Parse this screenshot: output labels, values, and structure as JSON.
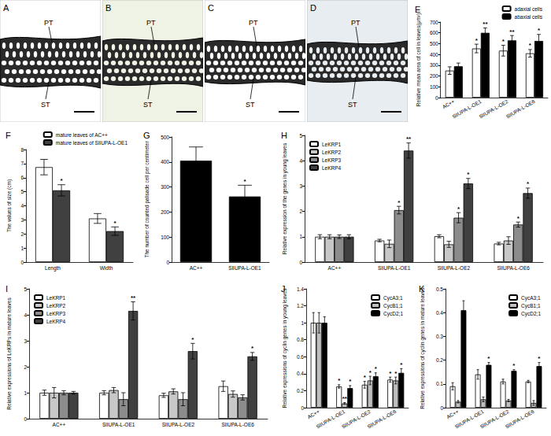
{
  "images": [
    {
      "title": "A",
      "labels": [
        "PT",
        "ST"
      ]
    },
    {
      "title": "B",
      "labels": [
        "PT",
        "ST"
      ]
    },
    {
      "title": "C",
      "labels": [
        "PT",
        "ST"
      ]
    },
    {
      "title": "D",
      "labels": [
        "PT",
        "ST"
      ]
    }
  ],
  "chart_data": [
    {
      "type": "bar",
      "title": "E",
      "ylabel": "Relative mean area of cell in leaves(μm²)",
      "categories": [
        "AC++",
        "SlIUPA-L-OE1",
        "SlIUPA-L-OE2",
        "SlIUPA-L-OE6"
      ],
      "series": [
        {
          "name": "adaxial cells",
          "color": "#ffffff",
          "values": [
            250,
            455,
            435,
            410
          ],
          "errors": [
            35,
            40,
            50,
            35
          ],
          "annotations": [
            null,
            "*",
            "*",
            "*"
          ]
        },
        {
          "name": "abaxial cells",
          "color": "#000000",
          "values": [
            290,
            600,
            530,
            525
          ],
          "errors": [
            30,
            45,
            45,
            60
          ],
          "annotations": [
            null,
            "**",
            "**",
            "*"
          ]
        }
      ],
      "ylim": [
        0,
        700
      ],
      "yticks": [
        0,
        100,
        200,
        300,
        400,
        500,
        600,
        700
      ],
      "grid": false,
      "legend": "upper right"
    },
    {
      "type": "bar",
      "title": "F",
      "ylabel": "The values of size (cm)",
      "categories": [
        "Length",
        "Width"
      ],
      "series": [
        {
          "name": "mature leaves of AC++",
          "color": "#ffffff",
          "values": [
            6.75,
            3.1
          ],
          "errors": [
            0.55,
            0.35
          ]
        },
        {
          "name": "mature leaves of SlIUPA-L-OE1",
          "color": "#404040",
          "values": [
            5.1,
            2.2
          ],
          "errors": [
            0.4,
            0.3
          ],
          "annotations": [
            "*",
            "*"
          ]
        }
      ],
      "ylim": [
        0,
        8
      ],
      "yticks": [
        0,
        1,
        2,
        3,
        4,
        5,
        6,
        7,
        8
      ],
      "grid": false,
      "legend": "upper right"
    },
    {
      "type": "bar",
      "title": "G",
      "ylabel": "The number of counted palisade cell per centimeter",
      "categories": [
        "AC++",
        "SlIUPA-L-OE1"
      ],
      "series": [
        {
          "color": "#000000",
          "values": [
            405,
            262
          ],
          "errors": [
            55,
            45
          ],
          "annotations": [
            null,
            "*"
          ]
        }
      ],
      "ylim": [
        0,
        500
      ],
      "yticks": [
        0,
        100,
        200,
        300,
        400,
        500
      ],
      "grid": false
    },
    {
      "type": "bar",
      "title": "H",
      "ylabel": "Relative expression of the genes in young leaves",
      "categories": [
        "AC++",
        "SlIUPA-L-OE1",
        "SlIUPA-L-OE2",
        "SlIUPA-L-OE6"
      ],
      "series": [
        {
          "name": "LeKRP1",
          "color": "#ffffff",
          "values": [
            1.0,
            0.85,
            1.02,
            0.73
          ],
          "errors": [
            0.08,
            0.05,
            0.06,
            0.05
          ]
        },
        {
          "name": "LeKRP2",
          "color": "#c8c8c8",
          "values": [
            1.0,
            0.72,
            0.7,
            0.85
          ],
          "errors": [
            0.08,
            0.15,
            0.12,
            0.15
          ]
        },
        {
          "name": "LeKRP3",
          "color": "#8c8c8c",
          "values": [
            1.0,
            2.05,
            1.75,
            1.48
          ],
          "errors": [
            0.07,
            0.15,
            0.2,
            0.1
          ],
          "annotations": [
            null,
            "*",
            "*",
            "*"
          ]
        },
        {
          "name": "LeKRP4",
          "color": "#404040",
          "values": [
            1.0,
            4.4,
            3.1,
            2.72
          ],
          "errors": [
            0.08,
            0.3,
            0.2,
            0.2
          ],
          "annotations": [
            null,
            "**",
            "*",
            "*"
          ]
        }
      ],
      "ylim": [
        0,
        5
      ],
      "yticks": [
        0,
        1,
        2,
        3,
        4,
        5
      ],
      "grid": false,
      "legend": "upper left"
    },
    {
      "type": "bar",
      "title": "I",
      "ylabel": "Relative expressions of LeKRPs in mature leaves",
      "categories": [
        "AC++",
        "SlIUPA-L-OE1",
        "SlIUPA-L-OE2",
        "SlIUPA-L-OE6"
      ],
      "series": [
        {
          "name": "LeKRP1",
          "color": "#ffffff",
          "values": [
            1.0,
            1.0,
            0.9,
            1.25
          ],
          "errors": [
            0.1,
            0.08,
            0.08,
            0.2
          ]
        },
        {
          "name": "LeKRP2",
          "color": "#c8c8c8",
          "values": [
            1.0,
            1.1,
            1.05,
            0.95
          ],
          "errors": [
            0.2,
            0.1,
            0.1,
            0.12
          ]
        },
        {
          "name": "LeKRP3",
          "color": "#8c8c8c",
          "values": [
            1.0,
            0.75,
            0.75,
            0.82
          ],
          "errors": [
            0.08,
            0.25,
            0.25,
            0.1
          ]
        },
        {
          "name": "LeKRP4",
          "color": "#404040",
          "values": [
            1.0,
            4.15,
            2.6,
            2.4
          ],
          "errors": [
            0.05,
            0.35,
            0.3,
            0.15
          ],
          "annotations": [
            null,
            "**",
            "*",
            "*"
          ]
        }
      ],
      "ylim": [
        0,
        5
      ],
      "yticks": [
        0,
        1,
        2,
        3,
        4,
        5
      ],
      "grid": false,
      "legend": "upper left"
    },
    {
      "type": "bar",
      "title": "J",
      "ylabel": "Relative expressions of cyclin genes in young leaves",
      "categories": [
        "AC++",
        "SlIUPA-L-OE1",
        "SlIUPA-L-OE2",
        "SlIUPA-L-OE6"
      ],
      "series": [
        {
          "name": "CycA3;1",
          "color": "#ffffff",
          "values": [
            1.0,
            0.25,
            0.27,
            0.33
          ],
          "errors": [
            0.12,
            0.02,
            0.04,
            0.03
          ],
          "annotations": [
            null,
            "*",
            "*",
            "*"
          ]
        },
        {
          "name": "CycB1;1",
          "color": "#bfbfbf",
          "values": [
            1.0,
            0.05,
            0.32,
            0.32
          ],
          "errors": [
            0.12,
            0.01,
            0.05,
            0.04
          ],
          "annotations": [
            null,
            "**",
            "*",
            "*"
          ]
        },
        {
          "name": "CycD2;1",
          "color": "#000000",
          "values": [
            1.0,
            0.23,
            0.37,
            0.41
          ],
          "errors": [
            0.07,
            0.03,
            0.04,
            0.05
          ],
          "annotations": [
            null,
            "*",
            "*",
            "*"
          ]
        }
      ],
      "ylim": [
        0,
        1.4
      ],
      "yticks": [
        0,
        0.2,
        0.4,
        0.6,
        0.8,
        1,
        1.2,
        1.4
      ],
      "grid": false,
      "legend": "upper right"
    },
    {
      "type": "bar",
      "title": "K",
      "ylabel": "Relative expressions of cyclin genes in mature leaves",
      "categories": [
        "AC++",
        "SlIUPA-L-OE1",
        "SlIUPA-L-OE2",
        "SlIUPA-L-OE6"
      ],
      "series": [
        {
          "name": "CycA3;1",
          "color": "#ffffff",
          "values": [
            0.09,
            0.14,
            0.11,
            0.11
          ],
          "errors": [
            0.015,
            0.02,
            0.01,
            0.005
          ]
        },
        {
          "name": "CycB1;1",
          "color": "#bfbfbf",
          "values": [
            0.025,
            0.035,
            0.03,
            0.02
          ],
          "errors": [
            0.005,
            0.01,
            0.005,
            0.01
          ]
        },
        {
          "name": "CycD2;1",
          "color": "#000000",
          "values": [
            0.41,
            0.18,
            0.155,
            0.175
          ],
          "errors": [
            0.04,
            0.01,
            0.005,
            0.015
          ],
          "annotations": [
            null,
            "*",
            "*",
            "*"
          ]
        }
      ],
      "ylim": [
        0,
        0.5
      ],
      "yticks": [
        0,
        0.1,
        0.2,
        0.3,
        0.4,
        0.5
      ],
      "grid": false,
      "legend": "upper right"
    }
  ]
}
